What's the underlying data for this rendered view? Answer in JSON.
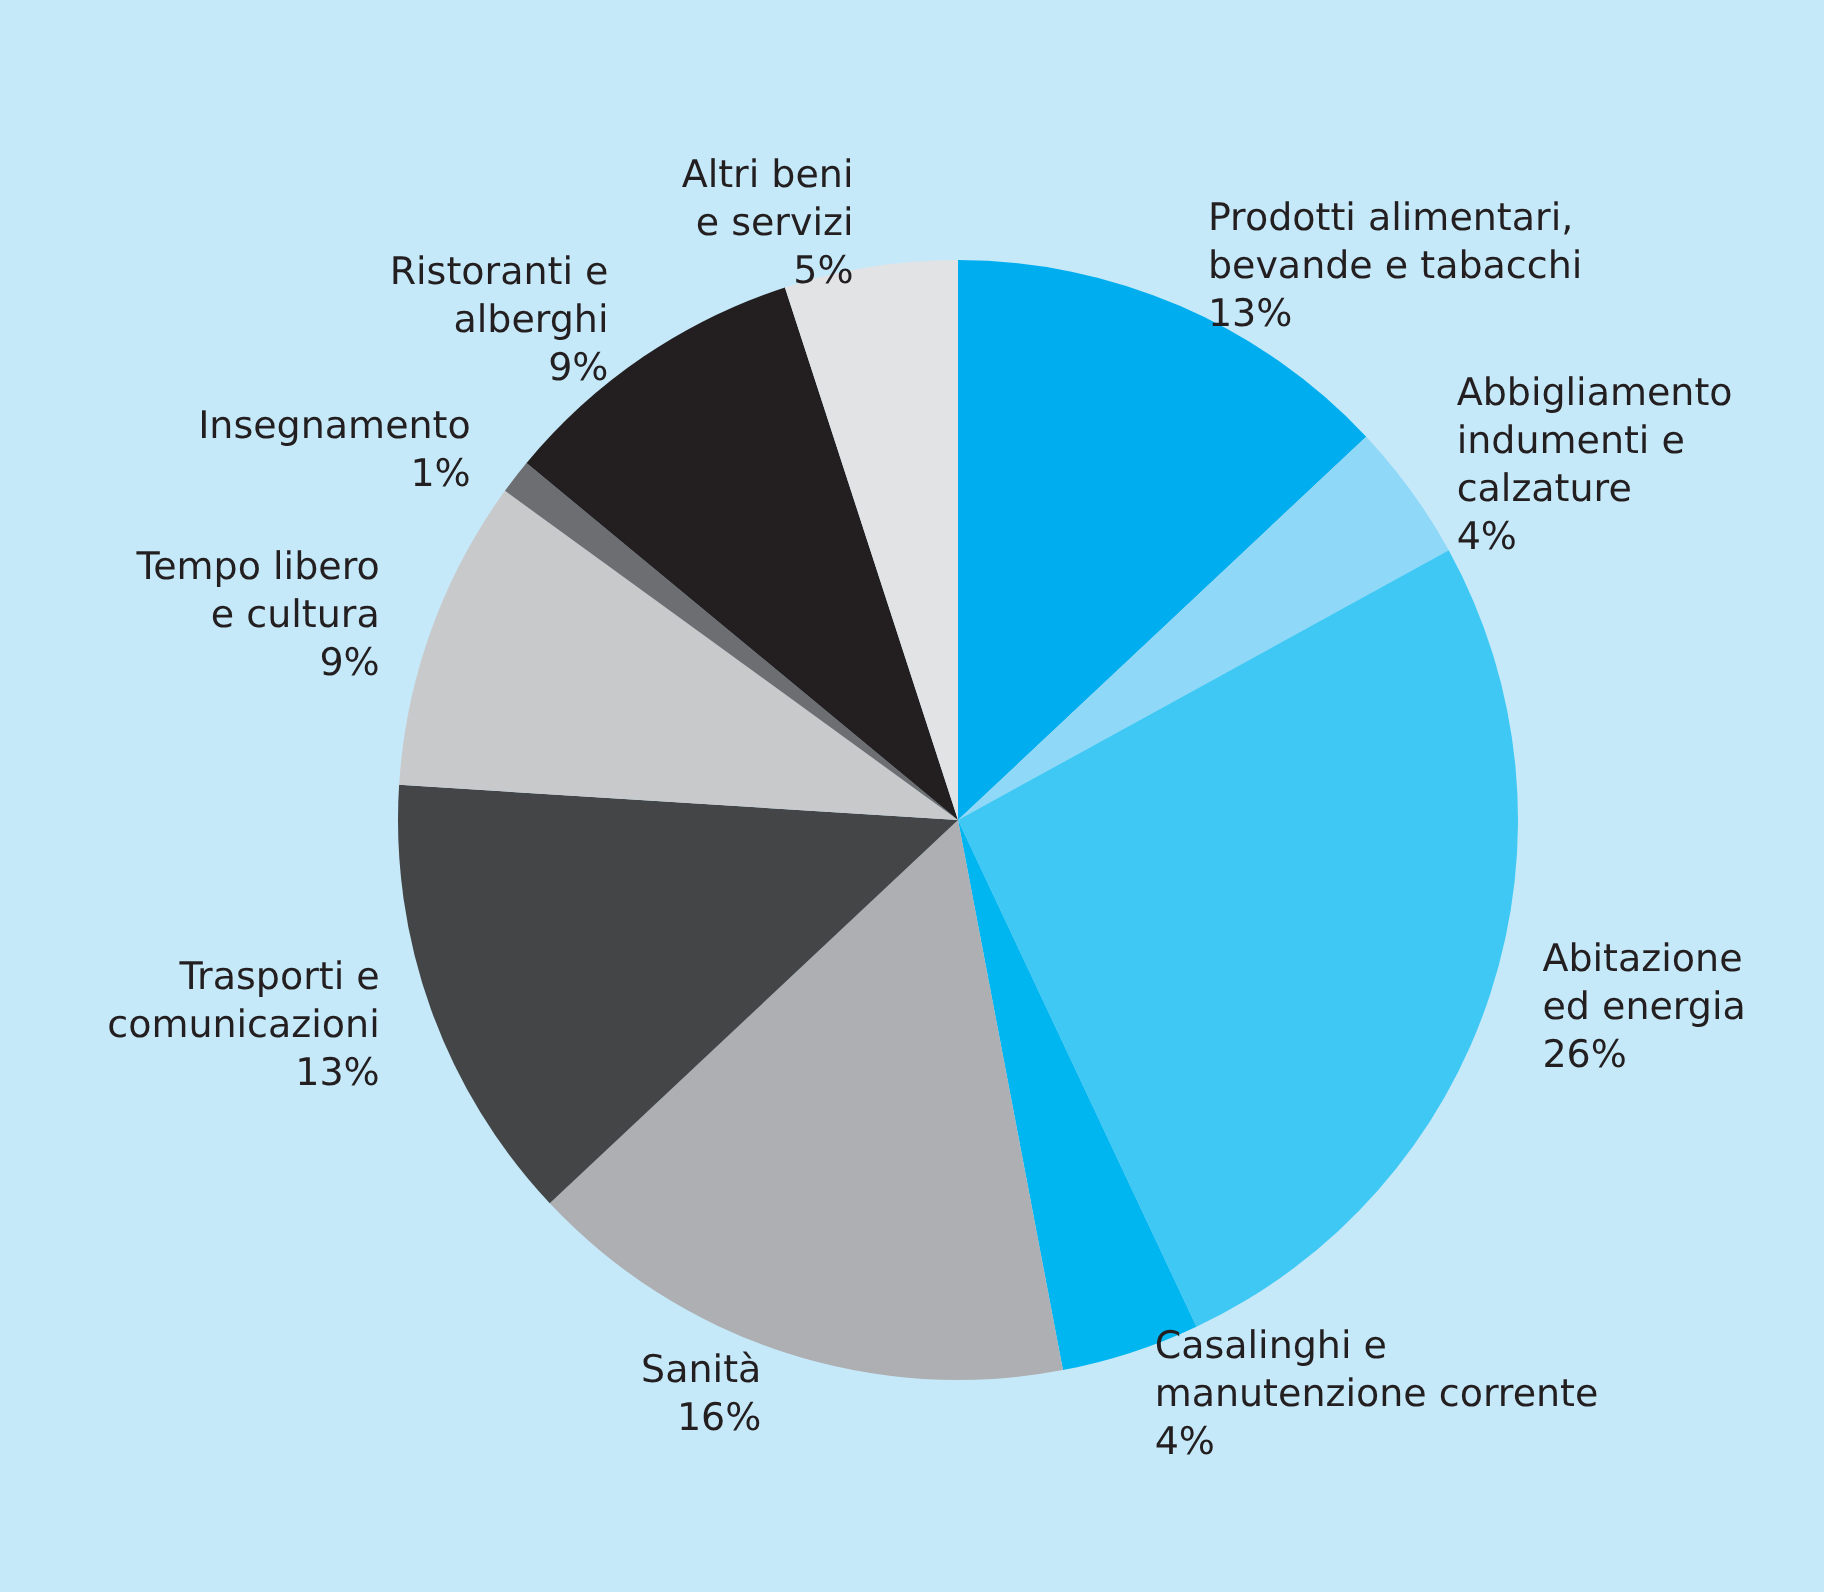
{
  "chart_data": {
    "type": "pie",
    "categories": [
      "Prodotti alimentari,\nbevande e tabacchi",
      "Abbigliamento\nindumenti e\ncalzature",
      "Abitazione\ned energia",
      "Casalinghi e\nmanutenzione corrente",
      "Sanità",
      "Trasporti e\ncomunicazioni",
      "Tempo libero\ne cultura",
      "Insegnamento",
      "Ristoranti e\nalberghi",
      "Altri beni\ne servizi"
    ],
    "values": [
      13,
      4,
      26,
      4,
      16,
      13,
      9,
      1,
      9,
      5
    ],
    "value_labels": [
      "13%",
      "4%",
      "26%",
      "4%",
      "16%",
      "13%",
      "9%",
      "1%",
      "9%",
      "5%"
    ],
    "colors": [
      "#00aeef",
      "#8fd8f8",
      "#40c8f4",
      "#00b6f0",
      "#adafb2",
      "#434547",
      "#c8c9cb",
      "#6d6e71",
      "#231f20",
      "#e2e3e5"
    ],
    "legend": false
  }
}
